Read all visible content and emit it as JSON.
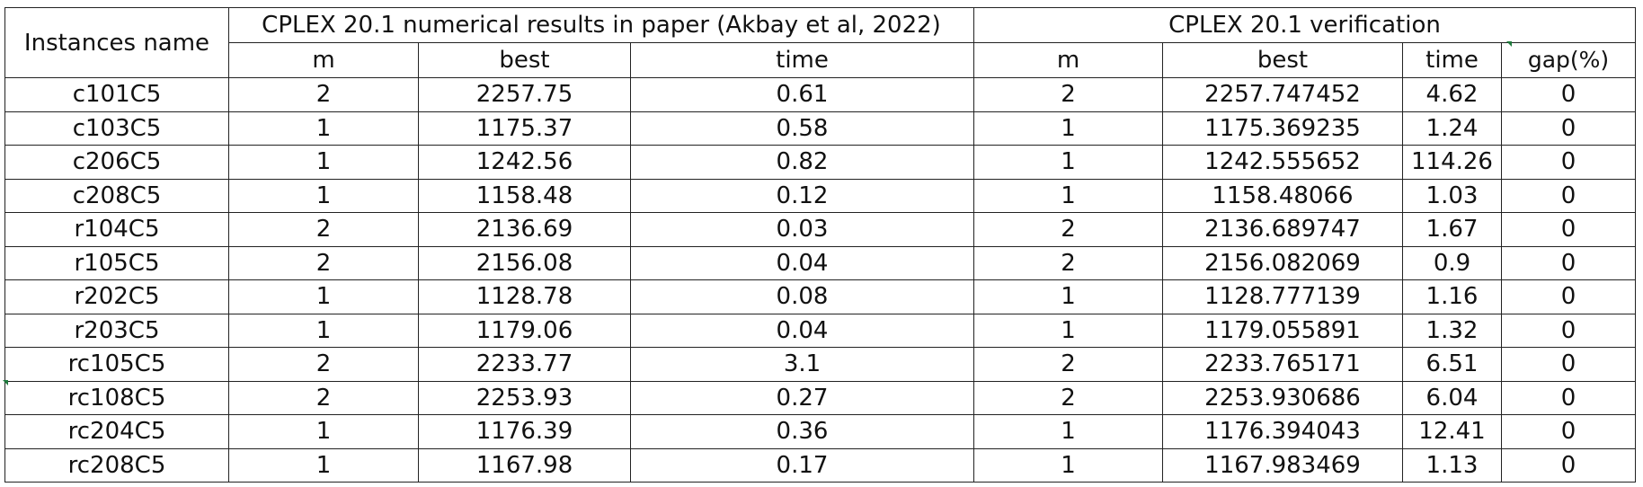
{
  "table": {
    "instances_header": "Instances name",
    "group_paper": "CPLEX 20.1 numerical results in paper (Akbay et al, 2022)",
    "group_verification": "CPLEX 20.1 verification",
    "subheaders": {
      "paper_m": "m",
      "paper_best": "best",
      "paper_time": "time",
      "ver_m": "m",
      "ver_best": "best",
      "ver_time": "time",
      "ver_gap": "gap(%)"
    },
    "rows": [
      {
        "name": "c101C5",
        "paper_m": "2",
        "paper_best": "2257.75",
        "paper_time": "0.61",
        "ver_m": "2",
        "ver_best": "2257.747452",
        "ver_time": "4.62",
        "gap": "0"
      },
      {
        "name": "c103C5",
        "paper_m": "1",
        "paper_best": "1175.37",
        "paper_time": "0.58",
        "ver_m": "1",
        "ver_best": "1175.369235",
        "ver_time": "1.24",
        "gap": "0"
      },
      {
        "name": "c206C5",
        "paper_m": "1",
        "paper_best": "1242.56",
        "paper_time": "0.82",
        "ver_m": "1",
        "ver_best": "1242.555652",
        "ver_time": "114.26",
        "gap": "0"
      },
      {
        "name": "c208C5",
        "paper_m": "1",
        "paper_best": "1158.48",
        "paper_time": "0.12",
        "ver_m": "1",
        "ver_best": "1158.48066",
        "ver_time": "1.03",
        "gap": "0"
      },
      {
        "name": "r104C5",
        "paper_m": "2",
        "paper_best": "2136.69",
        "paper_time": "0.03",
        "ver_m": "2",
        "ver_best": "2136.689747",
        "ver_time": "1.67",
        "gap": "0"
      },
      {
        "name": "r105C5",
        "paper_m": "2",
        "paper_best": "2156.08",
        "paper_time": "0.04",
        "ver_m": "2",
        "ver_best": "2156.082069",
        "ver_time": "0.9",
        "gap": "0"
      },
      {
        "name": "r202C5",
        "paper_m": "1",
        "paper_best": "1128.78",
        "paper_time": "0.08",
        "ver_m": "1",
        "ver_best": "1128.777139",
        "ver_time": "1.16",
        "gap": "0"
      },
      {
        "name": "r203C5",
        "paper_m": "1",
        "paper_best": "1179.06",
        "paper_time": "0.04",
        "ver_m": "1",
        "ver_best": "1179.055891",
        "ver_time": "1.32",
        "gap": "0"
      },
      {
        "name": "rc105C5",
        "paper_m": "2",
        "paper_best": "2233.77",
        "paper_time": "3.1",
        "ver_m": "2",
        "ver_best": "2233.765171",
        "ver_time": "6.51",
        "gap": "0"
      },
      {
        "name": "rc108C5",
        "paper_m": "2",
        "paper_best": "2253.93",
        "paper_time": "0.27",
        "ver_m": "2",
        "ver_best": "2253.930686",
        "ver_time": "6.04",
        "gap": "0"
      },
      {
        "name": "rc204C5",
        "paper_m": "1",
        "paper_best": "1176.39",
        "paper_time": "0.36",
        "ver_m": "1",
        "ver_best": "1176.394043",
        "ver_time": "12.41",
        "gap": "0"
      },
      {
        "name": "rc208C5",
        "paper_m": "1",
        "paper_best": "1167.98",
        "paper_time": "0.17",
        "ver_m": "1",
        "ver_best": "1167.983469",
        "ver_time": "1.13",
        "gap": "0"
      }
    ]
  }
}
